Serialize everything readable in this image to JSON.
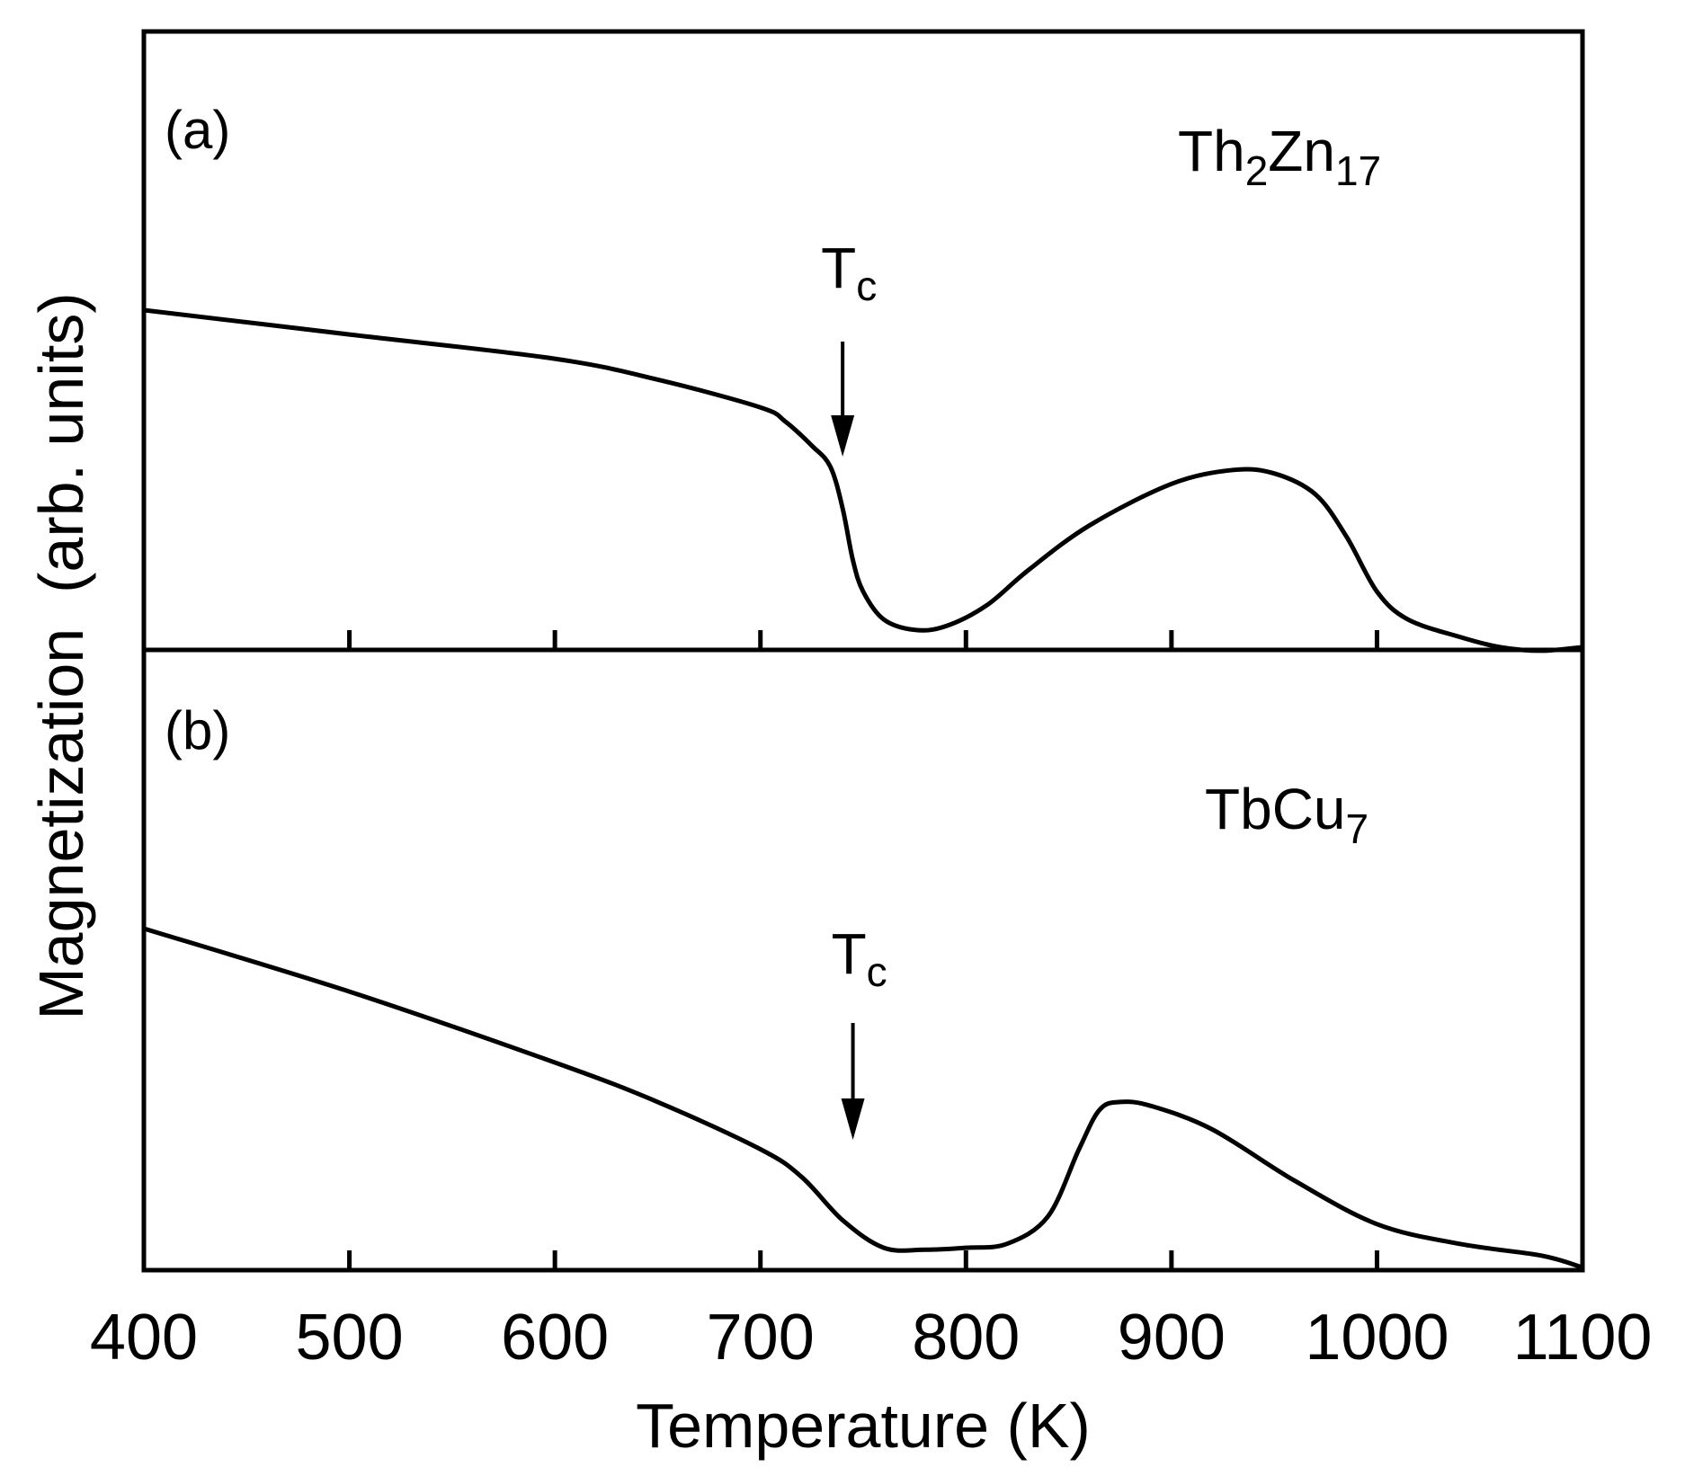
{
  "chart_data": [
    {
      "type": "line",
      "panel_label": "(a)",
      "compound": {
        "base": "Th",
        "sub1": "2",
        "mid": "Zn",
        "sub2": "17"
      },
      "annotation": {
        "text": "T",
        "sub": "c",
        "x": 740
      },
      "xlim": [
        400,
        1100
      ],
      "ylim": [
        0,
        1
      ],
      "x_ticks": [
        500,
        600,
        700,
        800,
        900,
        1000
      ],
      "series": [
        {
          "name": "Th2Zn17",
          "x": [
            400,
            500,
            600,
            650,
            700,
            712,
            725,
            734,
            740,
            745,
            750,
            760,
            775,
            790,
            810,
            830,
            860,
            900,
            930,
            950,
            970,
            985,
            1000,
            1015,
            1040,
            1060,
            1080,
            1100
          ],
          "y": [
            0.97,
            0.9,
            0.83,
            0.77,
            0.69,
            0.65,
            0.58,
            0.52,
            0.4,
            0.25,
            0.16,
            0.08,
            0.05,
            0.06,
            0.12,
            0.22,
            0.35,
            0.47,
            0.51,
            0.5,
            0.44,
            0.32,
            0.16,
            0.08,
            0.03,
            0.0,
            -0.01,
            0.0
          ]
        }
      ]
    },
    {
      "type": "line",
      "panel_label": "(b)",
      "compound": {
        "base": "TbCu",
        "sub1": "7"
      },
      "annotation": {
        "text": "T",
        "sub": "c",
        "x": 745
      },
      "xlim": [
        400,
        1100
      ],
      "ylim": [
        0,
        1
      ],
      "x_ticks": [
        500,
        600,
        700,
        800,
        900,
        1000
      ],
      "x_tick_labels": [
        "400",
        "500",
        "600",
        "700",
        "800",
        "900",
        "1000",
        "1100"
      ],
      "xlabel": "Temperature (K)",
      "series": [
        {
          "name": "TbCu7",
          "x": [
            400,
            500,
            600,
            650,
            700,
            720,
            740,
            760,
            780,
            800,
            820,
            840,
            855,
            865,
            875,
            890,
            920,
            960,
            1000,
            1040,
            1080,
            1100
          ],
          "y": [
            0.86,
            0.7,
            0.52,
            0.42,
            0.3,
            0.23,
            0.12,
            0.05,
            0.045,
            0.05,
            0.06,
            0.13,
            0.3,
            0.4,
            0.42,
            0.41,
            0.35,
            0.22,
            0.11,
            0.06,
            0.03,
            0.0
          ]
        }
      ]
    }
  ],
  "ylabel": "Magnetization  (arb. units)"
}
